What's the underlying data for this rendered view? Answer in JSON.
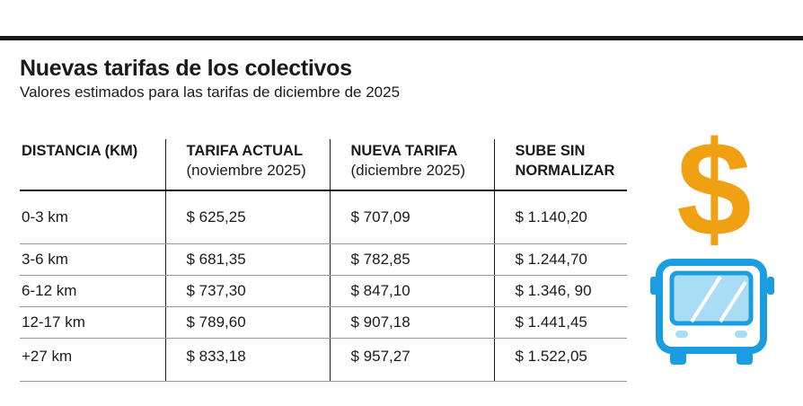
{
  "header": {
    "title": "Nuevas tarifas de los colectivos",
    "subtitle": "Valores estimados para las tarifas de diciembre de 2025"
  },
  "table": {
    "columns": [
      {
        "title_lines": [
          "DISTANCIA (KM)"
        ]
      },
      {
        "title_lines": [
          "TARIFA ACTUAL"
        ],
        "note": "(noviembre 2025)"
      },
      {
        "title_lines": [
          "NUEVA TARIFA"
        ],
        "note": "(diciembre 2025)"
      },
      {
        "title_lines": [
          "SUBE SIN",
          "NORMALIZAR"
        ]
      }
    ],
    "rows": [
      [
        "0-3 km",
        "$ 625,25",
        "$ 707,09",
        "$ 1.140,20"
      ],
      [
        "3-6 km",
        "$ 681,35",
        "$ 782,85",
        "$ 1.244,70"
      ],
      [
        "6-12 km",
        "$ 737,30",
        "$ 847,10",
        "$ 1.346, 90"
      ],
      [
        "12-17 km",
        "$ 789,60",
        "$ 907,18",
        "$ 1.441,45"
      ],
      [
        "+27 km",
        "$ 833,18",
        "$ 957,27",
        "$ 1.522,05"
      ]
    ]
  }
}
